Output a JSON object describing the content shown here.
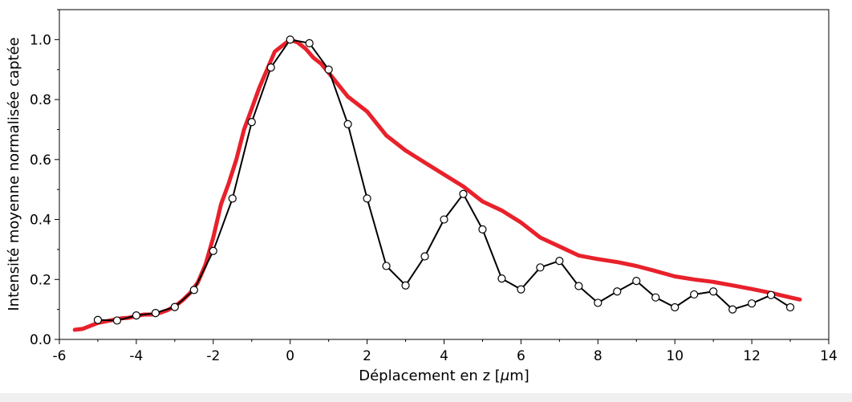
{
  "chart_data": {
    "type": "line",
    "title": "",
    "xlabel": "Déplacement en z [",
    "xlabel_mu": "μ",
    "xlabel_unit": "m]",
    "ylabel": "Intensité moyenne normalisée captée",
    "xlim": [
      -6,
      14
    ],
    "ylim": [
      0,
      1.1
    ],
    "x_ticks": [
      "-6",
      "-4",
      "-2",
      "0",
      "2",
      "4",
      "6",
      "8",
      "10",
      "12",
      "14"
    ],
    "y_ticks": [
      "0.0",
      "0.2",
      "0.4",
      "0.6",
      "0.8",
      "1.0"
    ],
    "grid": false,
    "legend": "none",
    "series": [
      {
        "color": "#000000",
        "marker": "open-circle",
        "x": [
          -5,
          -4.5,
          -4,
          -3.5,
          -3,
          -2.5,
          -2,
          -1.5,
          -1,
          -0.5,
          0,
          0.5,
          1,
          1.5,
          2,
          2.5,
          3,
          3.5,
          4,
          4.5,
          5,
          5.5,
          6,
          6.5,
          7,
          7.5,
          8,
          8.5,
          9,
          9.5,
          10,
          10.5,
          11,
          11.5,
          12,
          12.5,
          13
        ],
        "y": [
          0.065,
          0.063,
          0.08,
          0.088,
          0.108,
          0.165,
          0.295,
          0.47,
          0.725,
          0.907,
          1.0,
          0.988,
          0.9,
          0.718,
          0.47,
          0.245,
          0.18,
          0.277,
          0.4,
          0.485,
          0.367,
          0.203,
          0.167,
          0.24,
          0.262,
          0.178,
          0.122,
          0.16,
          0.195,
          0.14,
          0.107,
          0.15,
          0.16,
          0.1,
          0.12,
          0.148,
          0.107
        ]
      },
      {
        "color": "#e8212b",
        "marker": "none",
        "x": [
          -5.6,
          -5.4,
          -5.2,
          -5.0,
          -4.8,
          -4.6,
          -4.4,
          -4.2,
          -4.0,
          -3.8,
          -3.6,
          -3.4,
          -3.2,
          -3.0,
          -2.8,
          -2.6,
          -2.4,
          -2.2,
          -2.0,
          -1.8,
          -1.6,
          -1.4,
          -1.2,
          -1.0,
          -0.8,
          -0.6,
          -0.4,
          -0.2,
          0.0,
          0.2,
          0.4,
          0.6,
          0.8,
          1.0,
          1.5,
          2.0,
          2.5,
          3.0,
          3.5,
          4.0,
          4.5,
          5.0,
          5.5,
          6.0,
          6.5,
          7.0,
          7.5,
          8.0,
          8.5,
          9.0,
          9.5,
          10.0,
          10.5,
          11.0,
          11.5,
          12.0,
          12.5,
          13.0,
          13.25
        ],
        "y": [
          0.032,
          0.035,
          0.045,
          0.055,
          0.06,
          0.065,
          0.07,
          0.072,
          0.078,
          0.083,
          0.083,
          0.088,
          0.097,
          0.11,
          0.13,
          0.155,
          0.19,
          0.25,
          0.34,
          0.45,
          0.52,
          0.6,
          0.7,
          0.77,
          0.84,
          0.9,
          0.96,
          0.98,
          1.0,
          0.99,
          0.97,
          0.94,
          0.92,
          0.89,
          0.81,
          0.76,
          0.68,
          0.63,
          0.59,
          0.55,
          0.51,
          0.46,
          0.43,
          0.39,
          0.34,
          0.31,
          0.28,
          0.268,
          0.258,
          0.245,
          0.228,
          0.21,
          0.2,
          0.192,
          0.18,
          0.168,
          0.155,
          0.14,
          0.133
        ]
      }
    ]
  }
}
